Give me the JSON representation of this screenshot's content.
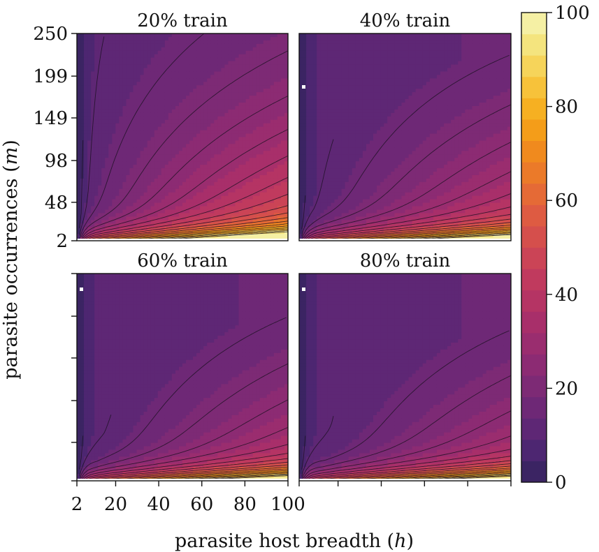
{
  "chart_data": {
    "type": "heatmap",
    "xlabel": "parasite host breadth",
    "xlabel_var": "h",
    "ylabel": "parasite occurrences",
    "ylabel_var": "m",
    "x_ticks": [
      2,
      20,
      40,
      60,
      80,
      100
    ],
    "y_ticks": [
      2,
      48,
      98,
      149,
      199,
      250
    ],
    "xlim": [
      2,
      100
    ],
    "ylim": [
      2,
      250
    ],
    "colorbar": {
      "ticks": [
        0,
        20,
        40,
        60,
        80,
        100
      ],
      "range": [
        0,
        100
      ],
      "colors": [
        "#3b2463",
        "#4d2671",
        "#5e2775",
        "#6e2876",
        "#7d2a75",
        "#8c2b73",
        "#9a2d6f",
        "#a82f6a",
        "#b53464",
        "#c03a5e",
        "#cb4456",
        "#d54f4c",
        "#de5b42",
        "#e56a36",
        "#eb7a29",
        "#f08a1e",
        "#f49d19",
        "#f6b022",
        "#f7c23a",
        "#f6d45a",
        "#f4e47e",
        "#f5f0a4"
      ]
    },
    "panels": [
      {
        "title": "20% train",
        "contour_levels": [
          5,
          10,
          15,
          20,
          25,
          30,
          35,
          40,
          45,
          50,
          55,
          60,
          65,
          70,
          75,
          80,
          85,
          90,
          95
        ]
      },
      {
        "title": "40% train",
        "contour_levels": [
          5,
          10,
          15,
          20,
          25,
          30,
          35,
          40,
          45,
          50,
          55,
          60,
          65,
          70,
          75,
          80,
          85,
          90,
          95
        ]
      },
      {
        "title": "60% train",
        "contour_levels": [
          5,
          10,
          15,
          20,
          25,
          30,
          35,
          40,
          45,
          50,
          55,
          60,
          65,
          70,
          75,
          80,
          85,
          90,
          95
        ]
      },
      {
        "title": "80% train",
        "contour_levels": [
          5,
          10,
          15,
          20,
          25,
          30,
          35,
          40,
          45,
          50,
          55,
          60,
          65,
          70,
          75,
          80,
          85,
          90,
          95
        ]
      }
    ]
  }
}
